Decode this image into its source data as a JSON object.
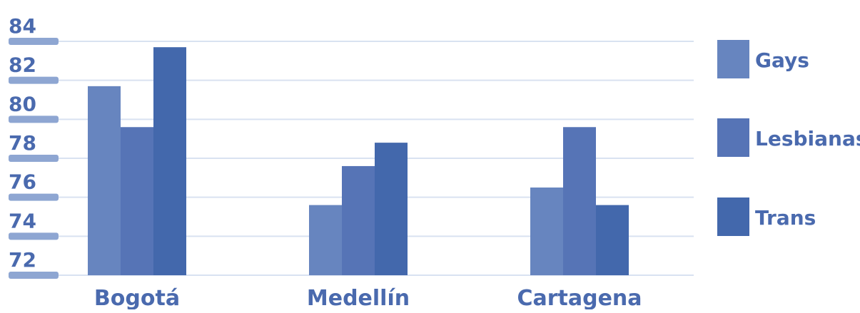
{
  "chart_data": {
    "type": "bar",
    "categories": [
      "Bogotá",
      "Medellín",
      "Cartagena"
    ],
    "series": [
      {
        "name": "Gays",
        "values": [
          81.7,
          75.6,
          76.5
        ]
      },
      {
        "name": "Lesbianas",
        "values": [
          79.6,
          77.6,
          79.6
        ]
      },
      {
        "name": "Trans",
        "values": [
          83.7,
          78.8,
          75.6
        ]
      }
    ],
    "ylim": [
      72,
      84
    ],
    "yticks": [
      "72",
      "74",
      "76",
      "78",
      "80",
      "82",
      "84"
    ],
    "grid": true,
    "legend_position": "right",
    "title": "",
    "xlabel": "",
    "ylabel": ""
  },
  "colors": {
    "series": [
      "#6785bf",
      "#5674b6",
      "#4368ac"
    ],
    "axis_label": "#4a6aae",
    "tick_bar": "#8ea6d2",
    "grid": "#d9e2f1"
  }
}
